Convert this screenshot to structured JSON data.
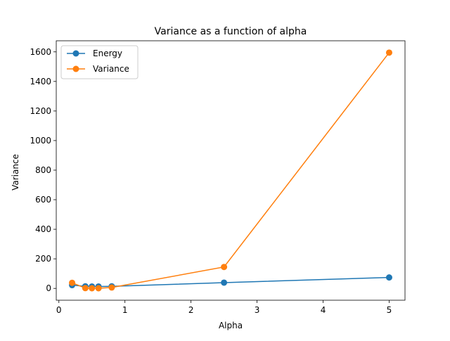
{
  "chart_data": {
    "type": "line",
    "title": "Variance as a function of alpha",
    "xlabel": "Alpha",
    "ylabel": "Variance",
    "xlim": [
      -0.04,
      5.24
    ],
    "ylim": [
      -80,
      1675
    ],
    "grid": false,
    "legend_position": "top-left",
    "x_ticks": [
      0,
      1,
      2,
      3,
      4,
      5
    ],
    "y_ticks": [
      0,
      200,
      400,
      600,
      800,
      1000,
      1200,
      1400,
      1600
    ],
    "series": [
      {
        "name": "Energy",
        "color": "#1f77b4",
        "marker": "circle",
        "x": [
          0.2,
          0.4,
          0.5,
          0.6,
          0.8,
          2.5,
          5.0
        ],
        "y": [
          22,
          14,
          13,
          13,
          14,
          39,
          74
        ]
      },
      {
        "name": "Variance",
        "color": "#ff7f0e",
        "marker": "circle",
        "x": [
          0.2,
          0.4,
          0.5,
          0.6,
          0.8,
          2.5,
          5.0
        ],
        "y": [
          38,
          2,
          1,
          1,
          6,
          145,
          1595
        ]
      }
    ]
  }
}
